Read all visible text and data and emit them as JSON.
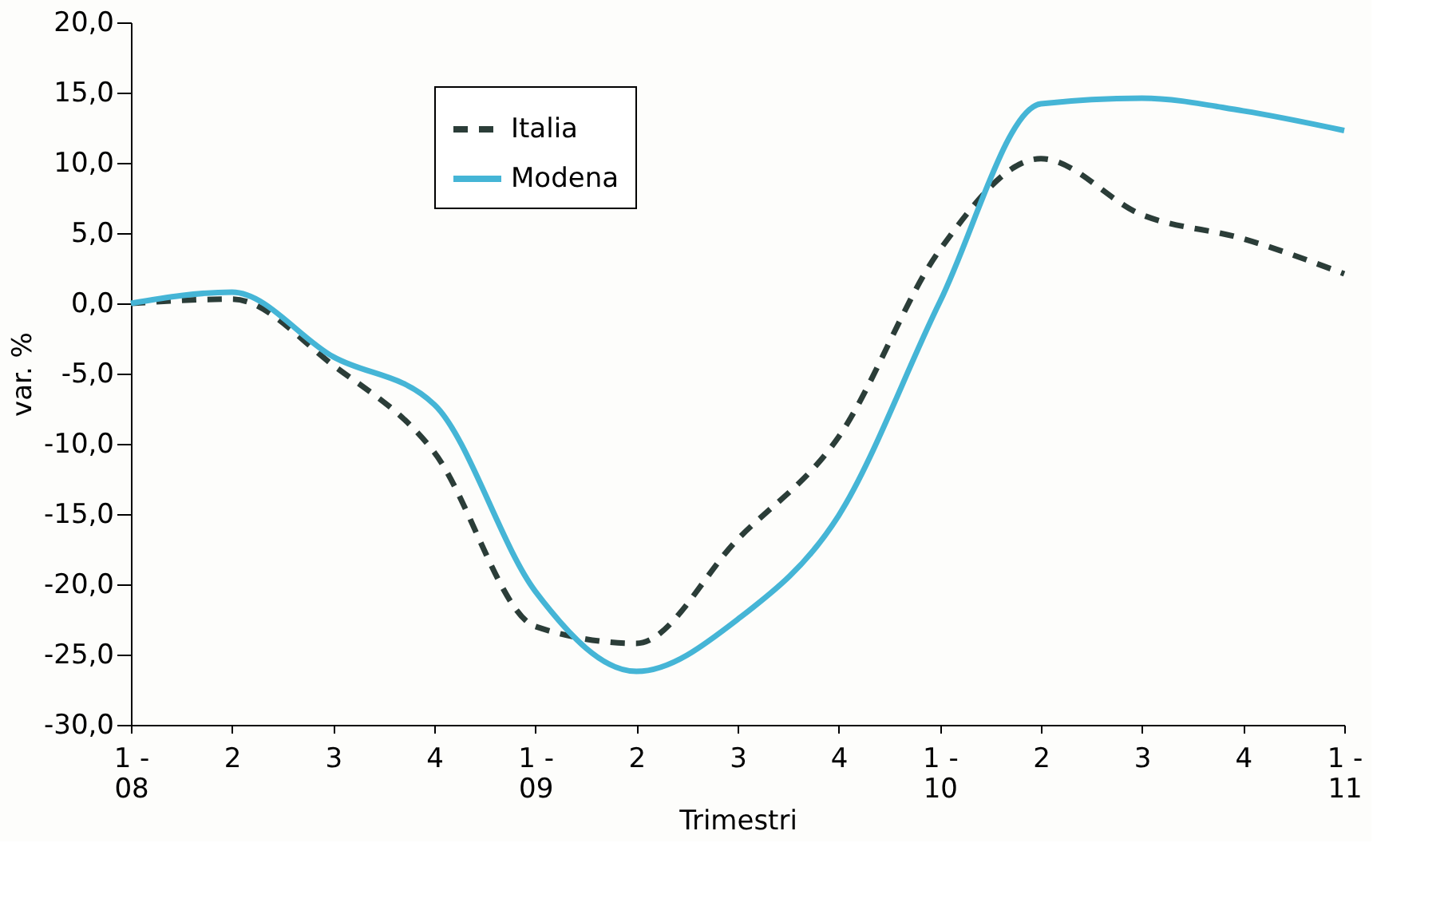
{
  "chart_data": {
    "type": "line",
    "categories": [
      "1 -\n08",
      "2",
      "3",
      "4",
      "1 -\n09",
      "2",
      "3",
      "4",
      "1 -\n10",
      "2",
      "3",
      "4",
      "1 -\n11"
    ],
    "series": [
      {
        "name": "Italia",
        "color": "#2b3d38",
        "line_style": "dashed",
        "values": [
          0,
          0.3,
          -4.4,
          -10.6,
          -23,
          -24.2,
          -16.8,
          -9.5,
          3.8,
          10.3,
          6.3,
          4.6,
          2.1
        ]
      },
      {
        "name": "Modena",
        "color": "#45b5d6",
        "line_style": "solid",
        "values": [
          0,
          0.8,
          -3.8,
          -7.2,
          -20.5,
          -26.2,
          -22.5,
          -15.1,
          0.1,
          14.2,
          14.6,
          13.7,
          12.3
        ]
      }
    ],
    "xlabel": "Trimestri",
    "ylabel": "var. %",
    "ylim": [
      -30,
      20
    ],
    "yticks": [
      {
        "value": -30,
        "label": "-30,0"
      },
      {
        "value": -25,
        "label": "-25,0"
      },
      {
        "value": -20,
        "label": "-20,0"
      },
      {
        "value": -15,
        "label": "-15,0"
      },
      {
        "value": -10,
        "label": "-10,0"
      },
      {
        "value": -5,
        "label": "-5,0"
      },
      {
        "value": 0,
        "label": "0,0"
      },
      {
        "value": 5,
        "label": "5,0"
      },
      {
        "value": 10,
        "label": "10,0"
      },
      {
        "value": 15,
        "label": "15,0"
      },
      {
        "value": 20,
        "label": "20,0"
      }
    ],
    "grid": false,
    "legend": "top left",
    "marker": "none"
  }
}
